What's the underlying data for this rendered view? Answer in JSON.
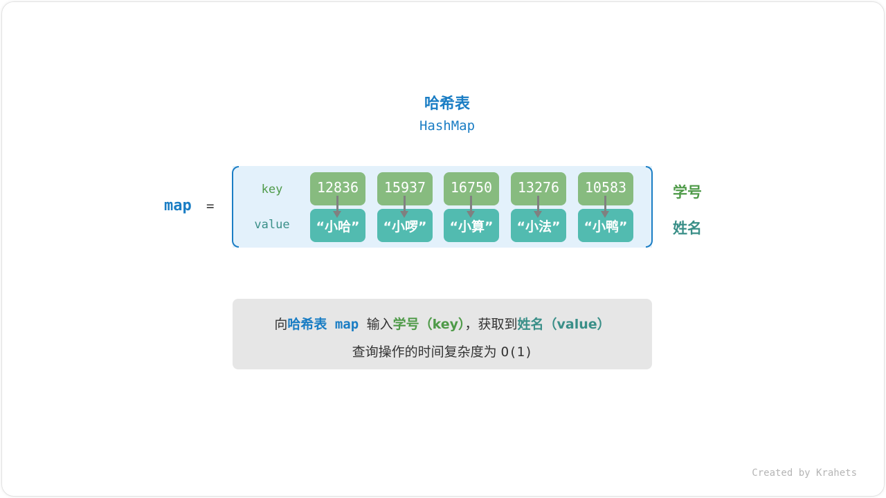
{
  "title": "哈希表",
  "subtitle": "HashMap",
  "variable": "map",
  "equals": "=",
  "row_labels": {
    "key": "key",
    "value": "value"
  },
  "entries": [
    {
      "key": "12836",
      "value": "“小哈”"
    },
    {
      "key": "15937",
      "value": "“小啰”"
    },
    {
      "key": "16750",
      "value": "“小算”"
    },
    {
      "key": "13276",
      "value": "“小法”"
    },
    {
      "key": "10583",
      "value": "“小鸭”"
    }
  ],
  "side_labels": {
    "key": "学号",
    "value": "姓名"
  },
  "note": {
    "p1": "向",
    "p2": "哈希表",
    "p3": " map ",
    "p4": "输入",
    "p5": "学号（key）",
    "p6": "，获取到",
    "p7": "姓名（value）",
    "line2a": "查询操作的时间复杂度为 ",
    "line2b": "O(1)"
  },
  "credit": "Created by Krahets",
  "colors": {
    "blue": "#1a7dc4",
    "key_green": "#87bb7f",
    "value_teal": "#52bbb0",
    "key_text": "#4e9a48",
    "value_text": "#3a8f88",
    "arrow": "#808080"
  }
}
